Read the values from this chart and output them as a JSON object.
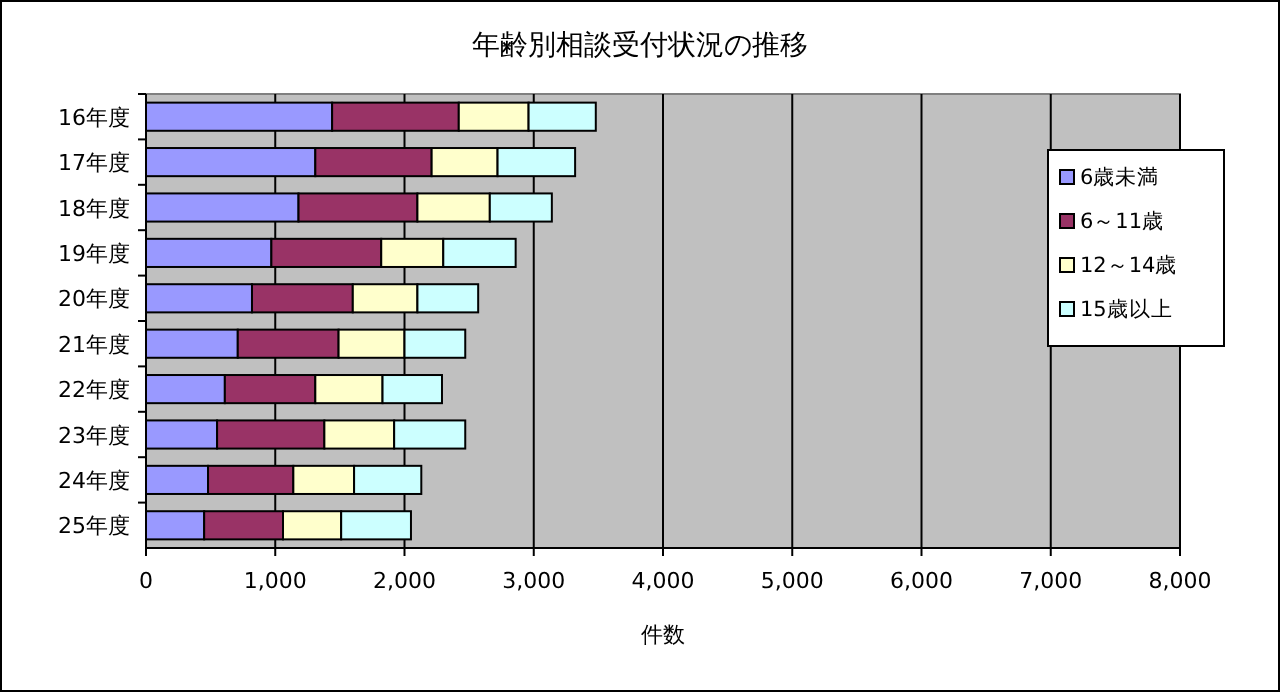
{
  "chart_data": {
    "type": "bar",
    "title": "年齢別相談受付状況の推移",
    "xlabel": "件数",
    "orientation": "horizontal",
    "stacked": true,
    "categories": [
      "16年度",
      "17年度",
      "18年度",
      "19年度",
      "20年度",
      "21年度",
      "22年度",
      "23年度",
      "24年度",
      "25年度"
    ],
    "series": [
      {
        "name": "6歳未満",
        "color": "#9999ff",
        "values": [
          1440,
          1310,
          1180,
          970,
          820,
          710,
          610,
          550,
          480,
          450
        ]
      },
      {
        "name": "6～11歳",
        "color": "#993366",
        "values": [
          980,
          900,
          920,
          850,
          780,
          780,
          700,
          830,
          660,
          610
        ]
      },
      {
        "name": "12～14歳",
        "color": "#ffffcc",
        "values": [
          540,
          510,
          560,
          480,
          500,
          510,
          520,
          540,
          470,
          450
        ]
      },
      {
        "name": "15歳以上",
        "color": "#ccffff",
        "values": [
          520,
          600,
          480,
          560,
          470,
          470,
          460,
          550,
          520,
          540
        ]
      }
    ],
    "xlim": [
      0,
      8000
    ],
    "xticks": [
      {
        "value": 0,
        "label": "0"
      },
      {
        "value": 1000,
        "label": "1,000"
      },
      {
        "value": 2000,
        "label": "2,000"
      },
      {
        "value": 3000,
        "label": "3,000"
      },
      {
        "value": 4000,
        "label": "4,000"
      },
      {
        "value": 5000,
        "label": "5,000"
      },
      {
        "value": 6000,
        "label": "6,000"
      },
      {
        "value": 7000,
        "label": "7,000"
      },
      {
        "value": 8000,
        "label": "8,000"
      }
    ],
    "grid": "x",
    "legend": "right"
  }
}
